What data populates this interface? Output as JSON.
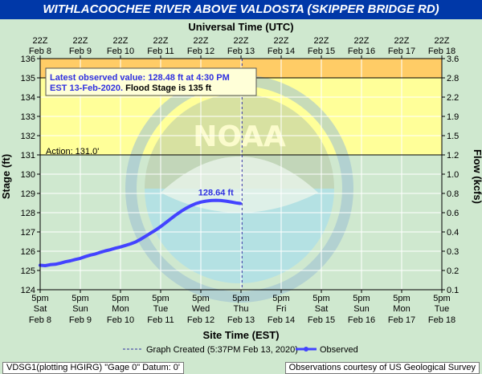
{
  "title": "WITHLACOOCHEE RIVER ABOVE VALDOSTA (SKIPPER BRIDGE RD)",
  "footer": {
    "left": "VDSG1(plotting HGIRG) \"Gage 0\" Datum: 0'",
    "right": "Observations courtesy of US Geological Survey"
  },
  "colors": {
    "title_bg": "#0038a8",
    "background": "#cfe8cf",
    "minor_flood": "#ffff99",
    "moderate_flood": "#ffcc66",
    "observed": "#4343ff"
  },
  "chart_data": {
    "type": "line",
    "top_axis_label": "Universal Time (UTC)",
    "top_ticks": [
      {
        "time": "22Z",
        "date": "Feb 8"
      },
      {
        "time": "22Z",
        "date": "Feb 9"
      },
      {
        "time": "22Z",
        "date": "Feb 10"
      },
      {
        "time": "22Z",
        "date": "Feb 11"
      },
      {
        "time": "22Z",
        "date": "Feb 12"
      },
      {
        "time": "22Z",
        "date": "Feb 13"
      },
      {
        "time": "22Z",
        "date": "Feb 14"
      },
      {
        "time": "22Z",
        "date": "Feb 15"
      },
      {
        "time": "22Z",
        "date": "Feb 16"
      },
      {
        "time": "22Z",
        "date": "Feb 17"
      },
      {
        "time": "22Z",
        "date": "Feb 18"
      }
    ],
    "xlabel": "Site Time (EST)",
    "x_ticks": [
      {
        "time": "5pm",
        "day": "Sat",
        "date": "Feb 8"
      },
      {
        "time": "5pm",
        "day": "Sun",
        "date": "Feb 9"
      },
      {
        "time": "5pm",
        "day": "Mon",
        "date": "Feb 10"
      },
      {
        "time": "5pm",
        "day": "Tue",
        "date": "Feb 11"
      },
      {
        "time": "5pm",
        "day": "Wed",
        "date": "Feb 12"
      },
      {
        "time": "5pm",
        "day": "Thu",
        "date": "Feb 13"
      },
      {
        "time": "5pm",
        "day": "Fri",
        "date": "Feb 14"
      },
      {
        "time": "5pm",
        "day": "Sat",
        "date": "Feb 15"
      },
      {
        "time": "5pm",
        "day": "Sun",
        "date": "Feb 16"
      },
      {
        "time": "5pm",
        "day": "Mon",
        "date": "Feb 17"
      },
      {
        "time": "5pm",
        "day": "Tue",
        "date": "Feb 18"
      }
    ],
    "xlim": [
      "Feb 8 5pm",
      "Feb 18 5pm"
    ],
    "ylabel": "Stage (ft)",
    "ylim": [
      124,
      136
    ],
    "y_ticks": [
      124,
      125,
      126,
      127,
      128,
      129,
      130,
      131,
      132,
      133,
      134,
      135,
      136
    ],
    "y2label": "Flow (kcfs)",
    "y2_ticks": [
      {
        "stage": 124,
        "label": "0.1"
      },
      {
        "stage": 125,
        "label": "0.2"
      },
      {
        "stage": 126,
        "label": "0.3"
      },
      {
        "stage": 127,
        "label": "0.4"
      },
      {
        "stage": 128,
        "label": "0.6"
      },
      {
        "stage": 129,
        "label": "0.8"
      },
      {
        "stage": 130,
        "label": "1.0"
      },
      {
        "stage": 131,
        "label": "1.2"
      },
      {
        "stage": 132,
        "label": "1.5"
      },
      {
        "stage": 133,
        "label": "1.9"
      },
      {
        "stage": 134,
        "label": "2.2"
      },
      {
        "stage": 135,
        "label": "2.8"
      },
      {
        "stage": 136,
        "label": "3.6"
      }
    ],
    "flood_stage": 135,
    "action_stage": 131,
    "action_label": "Action: 131.0'",
    "moderate_band": [
      135,
      136
    ],
    "minor_band": [
      131,
      135
    ],
    "observed": {
      "name": "Observed",
      "x": [
        "Feb 8 5pm",
        "Feb 8 8pm",
        "Feb 8 11pm",
        "Feb 9 2am",
        "Feb 9 5am",
        "Feb 9 8am",
        "Feb 9 11am",
        "Feb 9 2pm",
        "Feb 9 5pm",
        "Feb 9 8pm",
        "Feb 9 11pm",
        "Feb 10 2am",
        "Feb 10 5am",
        "Feb 10 8am",
        "Feb 10 11am",
        "Feb 10 2pm",
        "Feb 10 5pm",
        "Feb 10 8pm",
        "Feb 10 11pm",
        "Feb 11 2am",
        "Feb 11 5am",
        "Feb 11 8am",
        "Feb 11 11am",
        "Feb 11 2pm",
        "Feb 11 5pm",
        "Feb 11 8pm",
        "Feb 11 11pm",
        "Feb 12 2am",
        "Feb 12 5am",
        "Feb 12 8am",
        "Feb 12 11am",
        "Feb 12 2pm",
        "Feb 12 5pm",
        "Feb 12 8pm",
        "Feb 12 11pm",
        "Feb 13 2am",
        "Feb 13 5am",
        "Feb 13 8am",
        "Feb 13 11am",
        "Feb 13 2pm",
        "Feb 13 4:30pm"
      ],
      "y": [
        125.27,
        125.25,
        125.3,
        125.32,
        125.38,
        125.45,
        125.5,
        125.57,
        125.63,
        125.72,
        125.8,
        125.86,
        125.94,
        126.02,
        126.08,
        126.16,
        126.22,
        126.3,
        126.38,
        126.48,
        126.62,
        126.78,
        126.94,
        127.1,
        127.28,
        127.48,
        127.68,
        127.88,
        128.06,
        128.22,
        128.36,
        128.47,
        128.55,
        128.6,
        128.63,
        128.64,
        128.63,
        128.6,
        128.56,
        128.51,
        128.48
      ]
    },
    "max_label": "128.64 ft",
    "max_value": 128.64,
    "max_x": "Feb 13 2am",
    "graph_created": "Feb 13 5:37pm",
    "annotation": {
      "line1": "Latest observed value: 128.48 ft at 4:30 PM",
      "line2": "EST 13-Feb-2020.",
      "line2_suffix": "Flood Stage is 135 ft"
    },
    "legend": {
      "created": "Graph Created (5:37PM Feb 13, 2020)",
      "observed": "Observed"
    },
    "watermark": {
      "text": "NOAA"
    }
  }
}
